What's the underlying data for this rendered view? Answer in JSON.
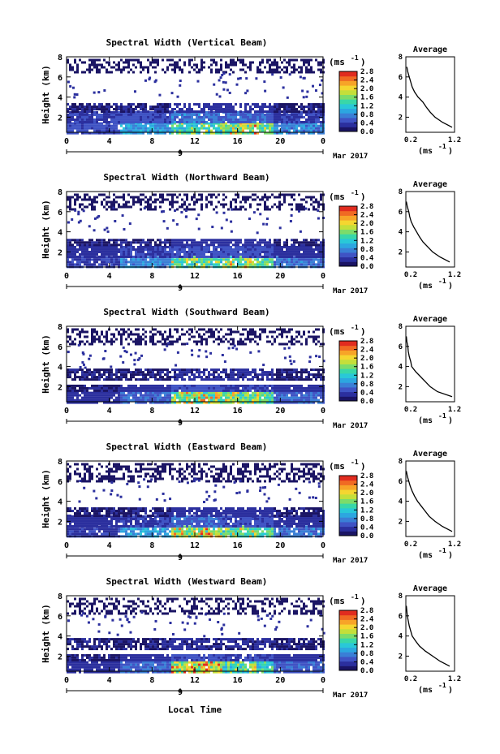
{
  "figure": {
    "xlabel": "Local Time",
    "date_tick": "9",
    "date_label": "Mar 2017",
    "y_axis_label": "Height (km)",
    "colorbar_unit": "(ms",
    "colorbar_unit_exp": "-1",
    "avg_title": "Average",
    "avg_xlabel": "(ms",
    "avg_xlabel_exp": "-1"
  },
  "colormap": [
    "#1a1464",
    "#2b2f9e",
    "#3f53c4",
    "#3a7fd6",
    "#2ca7e0",
    "#29c8d8",
    "#39d7a8",
    "#7cdc6a",
    "#c4df3a",
    "#f5d630",
    "#f7a428",
    "#f06a23",
    "#e12c1f"
  ],
  "chart_data": [
    {
      "type": "heatmap",
      "title": "Spectral Width (Vertical Beam)",
      "x_axis": {
        "label": "Local Time",
        "range": [
          0,
          24
        ],
        "ticks": [
          "0",
          "4",
          "8",
          "12",
          "16",
          "20",
          "0"
        ]
      },
      "y_axis": {
        "label": "Height (km)",
        "range": [
          0.5,
          8
        ],
        "ticks": [
          "2",
          "4",
          "6",
          "8"
        ]
      },
      "colorbar": {
        "unit": "ms^-1",
        "range": [
          0,
          2.8
        ],
        "ticks": [
          "0.0",
          "0.4",
          "0.8",
          "1.2",
          "1.6",
          "2.0",
          "2.4",
          "2.8"
        ]
      },
      "rows": [
        {
          "h": [
            0.5,
            1.5
          ],
          "w": [
            0.5,
            0.9,
            1.2,
            1.6,
            0.8
          ]
        },
        {
          "h": [
            1.5,
            2.6
          ],
          "w": [
            0.4,
            0.5,
            0.7,
            0.6,
            0.4
          ]
        },
        {
          "h": [
            2.6,
            3.4
          ],
          "w": [
            0.2,
            0.2,
            0.3,
            0.3,
            0.2
          ]
        },
        {
          "h": [
            6.5,
            7.8
          ],
          "w": [
            0.15,
            0.15,
            0.15,
            0.15,
            0.15
          ]
        }
      ],
      "average_profile": {
        "x_range": [
          0.2,
          1.2
        ],
        "x_ticks": [
          "0.2",
          "1.2"
        ],
        "y_range": [
          0.5,
          8
        ],
        "y_ticks": [
          "2",
          "4",
          "6",
          "8"
        ],
        "height": [
          1.0,
          1.5,
          2.0,
          2.5,
          3.0,
          3.5,
          4.0,
          4.5,
          5.0,
          5.5,
          6.0,
          6.5,
          7.0
        ],
        "width": [
          1.15,
          0.95,
          0.8,
          0.7,
          0.62,
          0.55,
          0.45,
          0.38,
          0.33,
          0.3,
          0.27,
          0.24,
          0.22
        ]
      }
    },
    {
      "type": "heatmap",
      "title": "Spectral Width (Northward Beam)",
      "x_axis": {
        "label": "Local Time",
        "range": [
          0,
          24
        ],
        "ticks": [
          "0",
          "4",
          "8",
          "12",
          "16",
          "20",
          "0"
        ]
      },
      "y_axis": {
        "label": "Height (km)",
        "range": [
          0.5,
          8
        ],
        "ticks": [
          "2",
          "4",
          "6",
          "8"
        ]
      },
      "colorbar": {
        "unit": "ms^-1",
        "range": [
          0,
          2.8
        ],
        "ticks": [
          "0.0",
          "0.4",
          "0.8",
          "1.2",
          "1.6",
          "2.0",
          "2.4",
          "2.8"
        ]
      },
      "rows": [
        {
          "h": [
            0.5,
            1.6
          ],
          "w": [
            0.4,
            0.8,
            1.3,
            1.5,
            0.7
          ]
        },
        {
          "h": [
            1.6,
            2.6
          ],
          "w": [
            0.3,
            0.4,
            0.5,
            0.5,
            0.3
          ]
        },
        {
          "h": [
            2.6,
            3.3
          ],
          "w": [
            0.2,
            0.2,
            0.3,
            0.3,
            0.2
          ]
        },
        {
          "h": [
            6.2,
            7.8
          ],
          "w": [
            0.15,
            0.15,
            0.15,
            0.15,
            0.15
          ]
        }
      ],
      "average_profile": {
        "x_range": [
          0.2,
          1.2
        ],
        "x_ticks": [
          "0.2",
          "1.2"
        ],
        "y_range": [
          0.5,
          8
        ],
        "y_ticks": [
          "2",
          "4",
          "6",
          "8"
        ],
        "height": [
          1.0,
          1.5,
          2.0,
          2.5,
          3.0,
          3.5,
          4.0,
          4.5,
          5.0,
          5.5,
          6.0,
          6.5,
          7.0
        ],
        "width": [
          1.1,
          0.9,
          0.75,
          0.65,
          0.55,
          0.48,
          0.42,
          0.36,
          0.31,
          0.28,
          0.26,
          0.23,
          0.21
        ]
      }
    },
    {
      "type": "heatmap",
      "title": "Spectral Width (Southward Beam)",
      "x_axis": {
        "label": "Local Time",
        "range": [
          0,
          24
        ],
        "ticks": [
          "0",
          "4",
          "8",
          "12",
          "16",
          "20",
          "0"
        ]
      },
      "y_axis": {
        "label": "Height (km)",
        "range": [
          0.5,
          8
        ],
        "ticks": [
          "2",
          "4",
          "6",
          "8"
        ]
      },
      "colorbar": {
        "unit": "ms^-1",
        "range": [
          0,
          2.8
        ],
        "ticks": [
          "0.0",
          "0.4",
          "0.8",
          "1.2",
          "1.6",
          "2.0",
          "2.4",
          "2.8"
        ]
      },
      "rows": [
        {
          "h": [
            0.5,
            1.5
          ],
          "w": [
            0.3,
            0.6,
            1.5,
            1.4,
            0.6
          ]
        },
        {
          "h": [
            1.5,
            2.2
          ],
          "w": [
            0.2,
            0.3,
            0.5,
            0.4,
            0.3
          ]
        },
        {
          "h": [
            2.8,
            3.8
          ],
          "w": [
            0.2,
            0.2,
            0.25,
            0.25,
            0.2
          ]
        },
        {
          "h": [
            6.2,
            7.8
          ],
          "w": [
            0.15,
            0.15,
            0.15,
            0.15,
            0.15
          ]
        }
      ],
      "average_profile": {
        "x_range": [
          0.2,
          1.2
        ],
        "x_ticks": [
          "0.2",
          "1.2"
        ],
        "y_range": [
          0.5,
          8
        ],
        "y_ticks": [
          "2",
          "4",
          "6",
          "8"
        ],
        "height": [
          1.0,
          1.5,
          2.0,
          2.5,
          3.0,
          3.5,
          4.0,
          4.5,
          5.0,
          5.5,
          6.0,
          6.5,
          7.0
        ],
        "width": [
          1.15,
          0.85,
          0.7,
          0.6,
          0.5,
          0.4,
          0.32,
          0.3,
          0.27,
          0.25,
          0.24,
          0.22,
          0.21
        ]
      }
    },
    {
      "type": "heatmap",
      "title": "Spectral Width (Eastward Beam)",
      "x_axis": {
        "label": "Local Time",
        "range": [
          0,
          24
        ],
        "ticks": [
          "0",
          "4",
          "8",
          "12",
          "16",
          "20",
          "0"
        ]
      },
      "y_axis": {
        "label": "Height (km)",
        "range": [
          0.5,
          8
        ],
        "ticks": [
          "2",
          "4",
          "6",
          "8"
        ]
      },
      "colorbar": {
        "unit": "ms^-1",
        "range": [
          0,
          2.8
        ],
        "ticks": [
          "0.0",
          "0.4",
          "0.8",
          "1.2",
          "1.6",
          "2.0",
          "2.4",
          "2.8"
        ]
      },
      "rows": [
        {
          "h": [
            0.5,
            1.6
          ],
          "w": [
            0.4,
            0.9,
            1.6,
            1.4,
            0.7
          ]
        },
        {
          "h": [
            1.6,
            2.6
          ],
          "w": [
            0.3,
            0.4,
            0.6,
            0.5,
            0.3
          ]
        },
        {
          "h": [
            2.6,
            3.4
          ],
          "w": [
            0.2,
            0.2,
            0.3,
            0.3,
            0.2
          ]
        },
        {
          "h": [
            6.0,
            7.8
          ],
          "w": [
            0.15,
            0.15,
            0.15,
            0.15,
            0.15
          ]
        }
      ],
      "average_profile": {
        "x_range": [
          0.2,
          1.2
        ],
        "x_ticks": [
          "0.2",
          "1.2"
        ],
        "y_range": [
          0.5,
          8
        ],
        "y_ticks": [
          "2",
          "4",
          "6",
          "8"
        ],
        "height": [
          1.0,
          1.5,
          2.0,
          2.5,
          3.0,
          3.5,
          4.0,
          4.5,
          5.0,
          5.5,
          6.0,
          6.5,
          7.0
        ],
        "width": [
          1.15,
          0.95,
          0.8,
          0.68,
          0.6,
          0.52,
          0.44,
          0.38,
          0.33,
          0.29,
          0.26,
          0.23,
          0.21
        ]
      }
    },
    {
      "type": "heatmap",
      "title": "Spectral Width (Westward Beam)",
      "x_axis": {
        "label": "Local Time",
        "range": [
          0,
          24
        ],
        "ticks": [
          "0",
          "4",
          "8",
          "12",
          "16",
          "20",
          "0"
        ]
      },
      "y_axis": {
        "label": "Height (km)",
        "range": [
          0.5,
          8
        ],
        "ticks": [
          "2",
          "4",
          "6",
          "8"
        ]
      },
      "colorbar": {
        "unit": "ms^-1",
        "range": [
          0,
          2.8
        ],
        "ticks": [
          "0.0",
          "0.4",
          "0.8",
          "1.2",
          "1.6",
          "2.0",
          "2.4",
          "2.8"
        ]
      },
      "rows": [
        {
          "h": [
            0.5,
            1.5
          ],
          "w": [
            0.3,
            0.6,
            1.7,
            1.3,
            0.6
          ]
        },
        {
          "h": [
            1.5,
            2.2
          ],
          "w": [
            0.2,
            0.3,
            0.5,
            0.4,
            0.3
          ]
        },
        {
          "h": [
            2.8,
            3.8
          ],
          "w": [
            0.2,
            0.2,
            0.25,
            0.25,
            0.2
          ]
        },
        {
          "h": [
            6.2,
            7.8
          ],
          "w": [
            0.15,
            0.15,
            0.15,
            0.15,
            0.15
          ]
        }
      ],
      "average_profile": {
        "x_range": [
          0.2,
          1.2
        ],
        "x_ticks": [
          "0.2",
          "1.2"
        ],
        "y_range": [
          0.5,
          8
        ],
        "y_ticks": [
          "2",
          "4",
          "6",
          "8"
        ],
        "height": [
          1.0,
          1.5,
          2.0,
          2.5,
          3.0,
          3.5,
          4.0,
          4.5,
          5.0,
          5.5,
          6.0,
          6.5,
          7.0
        ],
        "width": [
          1.1,
          0.9,
          0.75,
          0.6,
          0.48,
          0.4,
          0.33,
          0.3,
          0.27,
          0.25,
          0.23,
          0.22,
          0.21
        ]
      }
    }
  ]
}
